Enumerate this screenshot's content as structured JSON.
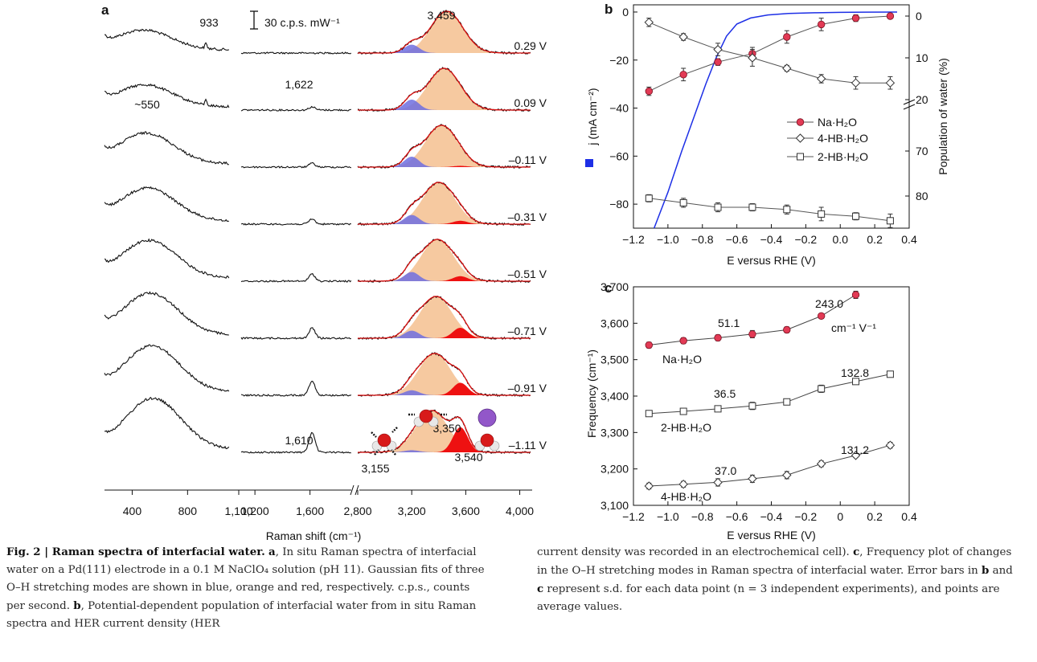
{
  "colors": {
    "na": "#e23a55",
    "blue_fit": "#6e6ee0",
    "orange_fit": "#f6c9a0",
    "red_fit": "#ee1111",
    "current": "#1d2fe6",
    "trace": "#111111",
    "fit_line": "#dd1111"
  },
  "chart_data": [
    {
      "id": "a",
      "type": "line",
      "panel_label": "a",
      "xlabel": "Raman shift (cm⁻¹)",
      "scale_bar_label": "30 c.p.s. mW⁻¹",
      "ticks_left": [
        "400",
        "800",
        "1,100"
      ],
      "ticks_mid": [
        "1,200",
        "1,600"
      ],
      "ticks_right": [
        "2,800",
        "3,200",
        "3,600",
        "4,000"
      ],
      "potentials": [
        "0.29 V",
        "0.09 V",
        "–0.11 V",
        "–0.31 V",
        "–0.51 V",
        "–0.71 V",
        "–0.91 V",
        "–1.11 V"
      ],
      "peak_labels": {
        "p933": "933",
        "p550": "~550",
        "p1622": "1,622",
        "p1610": "1,610",
        "p3459": "3,459",
        "p3350": "3,350",
        "p3155": "3,155",
        "p3540": "3,540"
      },
      "low_band_amplitude": [
        0.45,
        0.5,
        0.7,
        0.75,
        0.85,
        0.95,
        1.05,
        1.15
      ],
      "bend_amplitude": [
        0.0,
        0.1,
        0.12,
        0.16,
        0.22,
        0.32,
        0.45,
        0.6
      ],
      "oh_centers_cm": [
        3459,
        3440,
        3420,
        3400,
        3390,
        3380,
        3370,
        3350
      ],
      "fit_amplitudes": {
        "blue": [
          0.2,
          0.25,
          0.25,
          0.22,
          0.22,
          0.18,
          0.12,
          0.05
        ],
        "orange": [
          1.0,
          1.0,
          1.0,
          1.0,
          1.0,
          1.0,
          1.0,
          1.0
        ],
        "red": [
          0.0,
          0.0,
          0.03,
          0.08,
          0.12,
          0.25,
          0.3,
          0.6
        ]
      }
    },
    {
      "id": "b",
      "type": "line",
      "panel_label": "b",
      "xlabel": "E versus RHE (V)",
      "ylabel_left": "j (mA cm⁻²)",
      "ylabel_right": "Population of water (%)",
      "xlim": [
        -1.2,
        0.4
      ],
      "ylim_left": [
        -90,
        3
      ],
      "x_ticks": [
        "−1.2",
        "−1.0",
        "−0.8",
        "−0.6",
        "−0.4",
        "−0.2",
        "0.0",
        "0.2",
        "0.4"
      ],
      "y_ticks_left": [
        "0",
        "−20",
        "−40",
        "−60",
        "−80"
      ],
      "y_ticks_right": [
        "0",
        "10",
        "20",
        "70",
        "80"
      ],
      "x": [
        -1.11,
        -0.91,
        -0.71,
        -0.51,
        -0.31,
        -0.11,
        0.09,
        0.29
      ],
      "legend": [
        "Na·H₂O",
        "4-HB·H₂O",
        "2-HB·H₂O"
      ],
      "series": [
        {
          "name": "Na·H₂O",
          "values": [
            18,
            14,
            11,
            9,
            5,
            2,
            0.5,
            0
          ],
          "errors": [
            1.0,
            1.5,
            0.8,
            1.5,
            1.5,
            1.5,
            0.8,
            0.3
          ]
        },
        {
          "name": "4-HB·H₂O",
          "values": [
            1.5,
            5,
            8,
            10,
            12.5,
            15,
            16,
            16
          ],
          "errors": [
            1,
            0.8,
            1.5,
            2,
            0.7,
            1,
            1.5,
            1.5
          ]
        },
        {
          "name": "2-HB·H₂O",
          "values": [
            80.5,
            81.5,
            82.5,
            82.5,
            83,
            84,
            84.5,
            85.5
          ],
          "errors": [
            0.8,
            1,
            1,
            0.8,
            1,
            1.5,
            0.8,
            1.5
          ]
        }
      ],
      "current_density": {
        "E": [
          -1.08,
          -1.0,
          -0.92,
          -0.85,
          -0.78,
          -0.72,
          -0.66,
          -0.6,
          -0.52,
          -0.42,
          -0.3,
          -0.15,
          0.0,
          0.15,
          0.33
        ],
        "j": [
          -90,
          -75,
          -58,
          -44,
          -30,
          -19,
          -10,
          -5,
          -2.5,
          -1.2,
          -0.6,
          -0.3,
          -0.15,
          -0.05,
          0
        ]
      }
    },
    {
      "id": "c",
      "type": "line",
      "panel_label": "c",
      "xlabel": "E versus RHE (V)",
      "ylabel": "Frequency (cm⁻¹)",
      "xlim": [
        -1.2,
        0.4
      ],
      "ylim": [
        3100,
        3700
      ],
      "x_ticks": [
        "−1.2",
        "−1.0",
        "−0.8",
        "−0.6",
        "−0.4",
        "−0.2",
        "0",
        "0.2",
        "0.4"
      ],
      "y_ticks": [
        "3,100",
        "3,200",
        "3,300",
        "3,400",
        "3,500",
        "3,600",
        "3,700"
      ],
      "unit_label": "cm⁻¹ V⁻¹",
      "series": [
        {
          "name": "Na·H₂O",
          "x": [
            -1.11,
            -0.91,
            -0.71,
            -0.51,
            -0.31,
            -0.11,
            0.09
          ],
          "values": [
            3540,
            3552,
            3560,
            3570,
            3582,
            3620,
            3678
          ],
          "errors": [
            8,
            8,
            8,
            10,
            8,
            6,
            10
          ],
          "slope_low": "51.1",
          "slope_high": "243.0"
        },
        {
          "name": "2-HB·H₂O",
          "x": [
            -1.11,
            -0.91,
            -0.71,
            -0.51,
            -0.31,
            -0.11,
            0.09,
            0.29
          ],
          "values": [
            3352,
            3358,
            3365,
            3373,
            3384,
            3420,
            3440,
            3460
          ],
          "errors": [
            8,
            8,
            8,
            10,
            8,
            10,
            8,
            6
          ],
          "slope_low": "36.5",
          "slope_high": "132.8"
        },
        {
          "name": "4-HB·H₂O",
          "x": [
            -1.11,
            -0.91,
            -0.71,
            -0.51,
            -0.31,
            -0.11,
            0.09,
            0.29
          ],
          "values": [
            3153,
            3158,
            3163,
            3173,
            3183,
            3214,
            3237,
            3265
          ],
          "errors": [
            8,
            8,
            10,
            10,
            10,
            8,
            6,
            8
          ],
          "slope_low": "37.0",
          "slope_high": "131.2"
        }
      ]
    }
  ],
  "caption": {
    "label": "Fig. 2 | Raman spectra of interfacial water.",
    "col1": [
      {
        "b": "a",
        "t": ", In situ Raman spectra of interfacial water on a Pd(111) electrode in a 0.1 M NaClO₄ solution (pH 11). Gaussian fits of three O–H stretching modes are shown in blue, orange and red, respectively. c.p.s., counts per second. "
      },
      {
        "b": "b",
        "t": ", Potential-dependent population of interfacial water from in situ Raman spectra and HER current density (HER"
      }
    ],
    "col2": [
      {
        "b": "",
        "t": "current density was recorded in an electrochemical cell). "
      },
      {
        "b": "c",
        "t": ", Frequency plot of changes in the O–H stretching modes in Raman spectra of interfacial water. Error bars in "
      },
      {
        "b": "b",
        "t": " and "
      },
      {
        "b": "c",
        "t": " represent s.d. for each data point (n = 3 independent experiments), and points are average values."
      }
    ]
  }
}
